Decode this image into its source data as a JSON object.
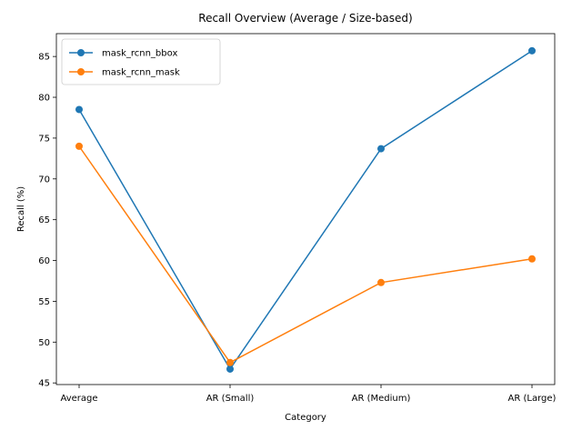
{
  "chart_data": {
    "type": "line",
    "title": "Recall Overview (Average / Size-based)",
    "xlabel": "Category",
    "ylabel": "Recall (%)",
    "categories": [
      "Average",
      "AR (Small)",
      "AR (Medium)",
      "AR (Large)"
    ],
    "ylim": [
      44.8,
      87.8
    ],
    "yticks": [
      45,
      50,
      55,
      60,
      65,
      70,
      75,
      80,
      85
    ],
    "grid": false,
    "legend_position": "upper-left",
    "series": [
      {
        "name": "mask_rcnn_bbox",
        "color": "#1f77b4",
        "marker": "circle",
        "values": [
          78.5,
          46.7,
          73.7,
          85.7
        ]
      },
      {
        "name": "mask_rcnn_mask",
        "color": "#ff7f0e",
        "marker": "circle",
        "values": [
          74.0,
          47.5,
          57.3,
          60.2
        ]
      }
    ]
  }
}
